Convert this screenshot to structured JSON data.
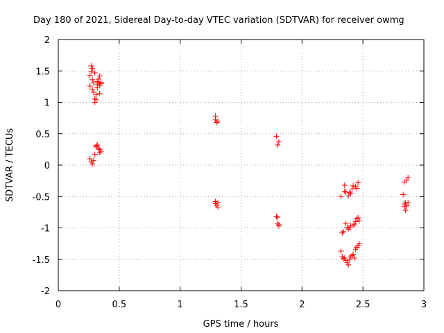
{
  "chart_data": {
    "type": "scatter",
    "title": "Day 180 of 2021, Sidereal Day-to-day VTEC variation (SDTVAR) for receiver owmg",
    "xlabel": "GPS time / hours",
    "ylabel": "SDTVAR / TECUs",
    "xlim": [
      0,
      3
    ],
    "ylim": [
      -2,
      2
    ],
    "xticks": [
      0,
      0.5,
      1,
      1.5,
      2,
      2.5,
      3
    ],
    "xtick_labels": [
      "0",
      "0.5",
      "1",
      "1.5",
      "2",
      "2.5",
      "3"
    ],
    "yticks": [
      -2,
      -1.5,
      -1,
      -0.5,
      0,
      0.5,
      1,
      1.5,
      2
    ],
    "ytick_labels": [
      "-2",
      "-1.5",
      "-1",
      "-0.5",
      "0",
      "0.5",
      "1",
      "1.5",
      "2"
    ],
    "grid": true,
    "marker": "+",
    "color": "#ff0000",
    "series": [
      {
        "name": "owmg",
        "points": [
          [
            0.26,
            1.26
          ],
          [
            0.26,
            1.43
          ],
          [
            0.27,
            1.49
          ],
          [
            0.27,
            1.58
          ],
          [
            0.28,
            1.54
          ],
          [
            0.28,
            1.36
          ],
          [
            0.28,
            1.2
          ],
          [
            0.29,
            1.16
          ],
          [
            0.29,
            1.31
          ],
          [
            0.3,
            1.47
          ],
          [
            0.3,
            1.0
          ],
          [
            0.3,
            1.06
          ],
          [
            0.31,
            1.04
          ],
          [
            0.31,
            1.12
          ],
          [
            0.32,
            1.23
          ],
          [
            0.32,
            1.28
          ],
          [
            0.32,
            1.33
          ],
          [
            0.33,
            1.31
          ],
          [
            0.33,
            1.37
          ],
          [
            0.34,
            1.27
          ],
          [
            0.34,
            1.42
          ],
          [
            0.34,
            1.14
          ],
          [
            0.35,
            1.3
          ],
          [
            0.35,
            1.32
          ],
          [
            0.26,
            0.1
          ],
          [
            0.27,
            0.05
          ],
          [
            0.28,
            0.02
          ],
          [
            0.29,
            0.07
          ],
          [
            0.3,
            0.17
          ],
          [
            0.31,
            0.31
          ],
          [
            0.31,
            0.29
          ],
          [
            0.32,
            0.32
          ],
          [
            0.33,
            0.27
          ],
          [
            0.34,
            0.25
          ],
          [
            0.34,
            0.2
          ],
          [
            0.35,
            0.22
          ],
          [
            1.29,
            0.78
          ],
          [
            1.29,
            0.72
          ],
          [
            1.3,
            0.68
          ],
          [
            1.31,
            0.7
          ],
          [
            1.29,
            -0.58
          ],
          [
            1.29,
            -0.61
          ],
          [
            1.3,
            -0.64
          ],
          [
            1.31,
            -0.67
          ],
          [
            1.31,
            -0.6
          ],
          [
            1.79,
            0.46
          ],
          [
            1.8,
            0.32
          ],
          [
            1.81,
            0.37
          ],
          [
            1.79,
            -0.82
          ],
          [
            1.8,
            -0.83
          ],
          [
            1.8,
            -0.93
          ],
          [
            1.81,
            -0.97
          ],
          [
            1.81,
            -0.95
          ],
          [
            2.32,
            -0.5
          ],
          [
            2.33,
            -1.08
          ],
          [
            2.34,
            -1.06
          ],
          [
            2.35,
            -0.42
          ],
          [
            2.35,
            -0.32
          ],
          [
            2.36,
            -0.43
          ],
          [
            2.36,
            -0.93
          ],
          [
            2.37,
            -0.99
          ],
          [
            2.38,
            -1.02
          ],
          [
            2.38,
            -0.49
          ],
          [
            2.39,
            -0.44
          ],
          [
            2.39,
            -1.0
          ],
          [
            2.4,
            -0.96
          ],
          [
            2.4,
            -0.45
          ],
          [
            2.41,
            -0.38
          ],
          [
            2.42,
            -0.33
          ],
          [
            2.42,
            -0.96
          ],
          [
            2.43,
            -0.94
          ],
          [
            2.44,
            -0.34
          ],
          [
            2.44,
            -0.9
          ],
          [
            2.45,
            -0.37
          ],
          [
            2.45,
            -0.85
          ],
          [
            2.46,
            -0.28
          ],
          [
            2.46,
            -0.84
          ],
          [
            2.47,
            -0.89
          ],
          [
            2.32,
            -1.37
          ],
          [
            2.33,
            -1.46
          ],
          [
            2.34,
            -1.49
          ],
          [
            2.35,
            -1.48
          ],
          [
            2.36,
            -1.52
          ],
          [
            2.37,
            -1.55
          ],
          [
            2.38,
            -1.59
          ],
          [
            2.39,
            -1.5
          ],
          [
            2.4,
            -1.46
          ],
          [
            2.41,
            -1.44
          ],
          [
            2.42,
            -1.42
          ],
          [
            2.43,
            -1.48
          ],
          [
            2.44,
            -1.34
          ],
          [
            2.45,
            -1.31
          ],
          [
            2.46,
            -1.28
          ],
          [
            2.47,
            -1.25
          ],
          [
            2.83,
            -0.47
          ],
          [
            2.84,
            -0.27
          ],
          [
            2.84,
            -0.62
          ],
          [
            2.84,
            -0.66
          ],
          [
            2.85,
            -0.72
          ],
          [
            2.85,
            -0.6
          ],
          [
            2.86,
            -0.24
          ],
          [
            2.86,
            -0.65
          ],
          [
            2.87,
            -0.6
          ],
          [
            2.87,
            -0.2
          ]
        ]
      }
    ]
  }
}
